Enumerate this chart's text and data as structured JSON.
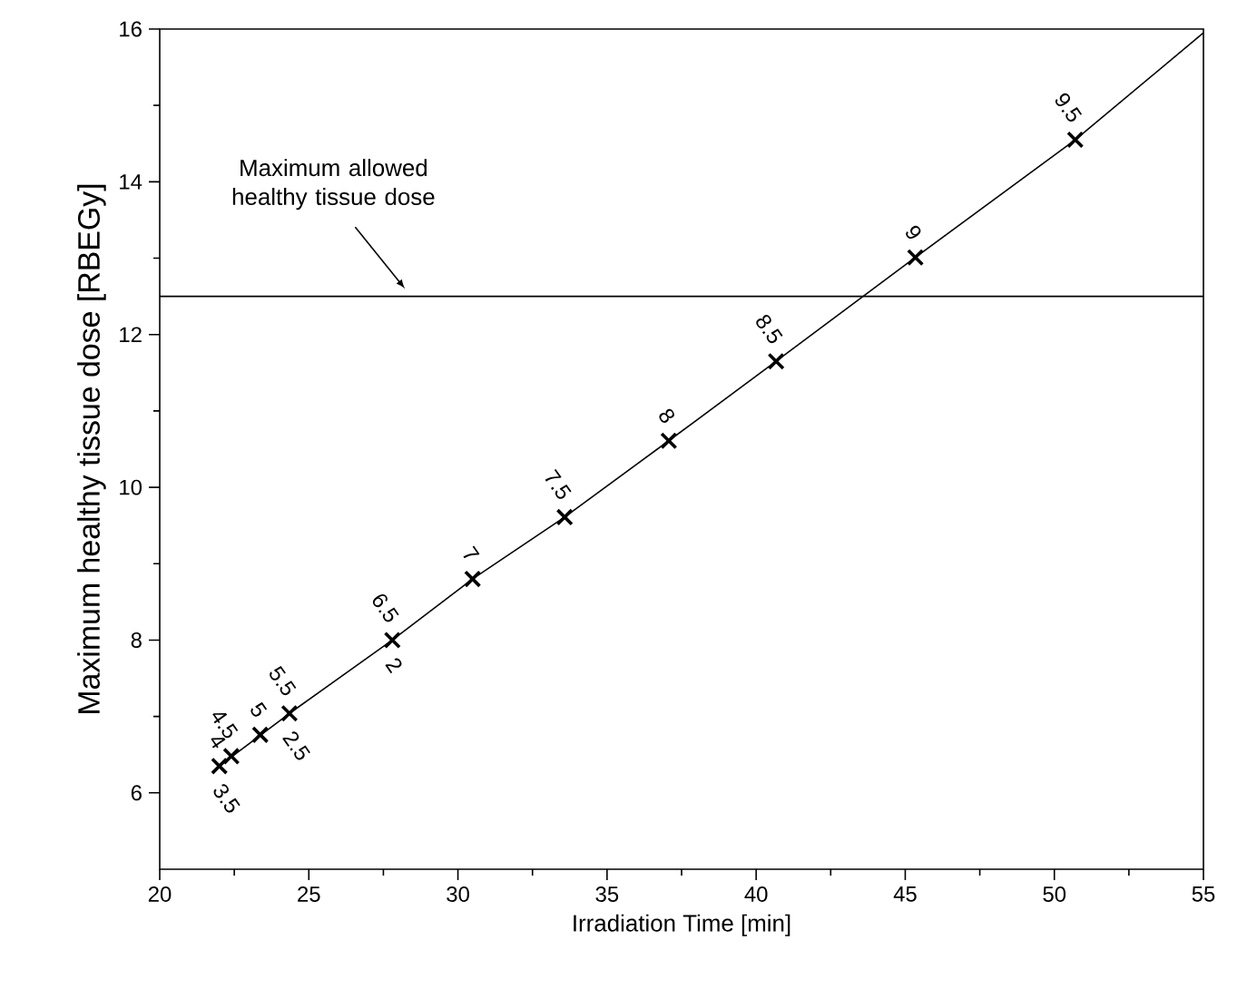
{
  "chart_data": {
    "type": "scatter",
    "xlabel": "Irradiation Time [min]",
    "ylabel": "Maximum healthy tissue dose [RBEGy]",
    "xlim": [
      20,
      55
    ],
    "ylim": [
      5,
      16
    ],
    "xticks": [
      20,
      25,
      30,
      35,
      40,
      45,
      50,
      55
    ],
    "yticks": [
      6,
      8,
      10,
      12,
      14,
      16
    ],
    "series": [
      {
        "type": "line",
        "marker": "none",
        "color": "#000000",
        "x": [
          22.0,
          24.35,
          27.8,
          30.49,
          33.58,
          37.07,
          40.67,
          45.34,
          50.7,
          55
        ],
        "values": [
          6.35,
          7.04,
          8.0,
          8.8,
          9.61,
          10.61,
          11.65,
          13.01,
          14.55,
          15.95
        ]
      },
      {
        "marker": "cross",
        "color": "#000000",
        "x": [
          22.0,
          22.4,
          23.37,
          24.35,
          27.8,
          30.49,
          33.58,
          37.07,
          40.67,
          45.34,
          50.7
        ],
        "values": [
          6.35,
          6.48,
          6.76,
          7.04,
          8.0,
          8.8,
          9.61,
          10.61,
          11.65,
          13.01,
          14.55
        ]
      }
    ],
    "annotations": [
      {
        "text": "4",
        "x": 22.0,
        "y": 6.35
      },
      {
        "text": "3.5",
        "x": 22.0,
        "y": 6.35
      },
      {
        "text": "4.5",
        "x": 22.4,
        "y": 6.48
      },
      {
        "text": "5",
        "x": 23.37,
        "y": 6.76
      },
      {
        "text": "5.5",
        "x": 24.35,
        "y": 7.04
      },
      {
        "text": "2.5",
        "x": 24.35,
        "y": 7.04
      },
      {
        "text": "6.5",
        "x": 27.8,
        "y": 8.0
      },
      {
        "text": "2",
        "x": 27.8,
        "y": 8.0
      },
      {
        "text": "7",
        "x": 30.49,
        "y": 8.8
      },
      {
        "text": "7.5",
        "x": 33.58,
        "y": 9.61
      },
      {
        "text": "8",
        "x": 37.07,
        "y": 10.61
      },
      {
        "text": "8.5",
        "x": 40.67,
        "y": 11.65
      },
      {
        "text": "9",
        "x": 45.34,
        "y": 13.01
      },
      {
        "text": "9.5",
        "x": 50.7,
        "y": 14.55
      }
    ],
    "ref_lines": [
      {
        "axis": "y",
        "value": 12.5,
        "label": "Maximum allowed healthy tissue dose",
        "color": "#000000"
      }
    ]
  }
}
